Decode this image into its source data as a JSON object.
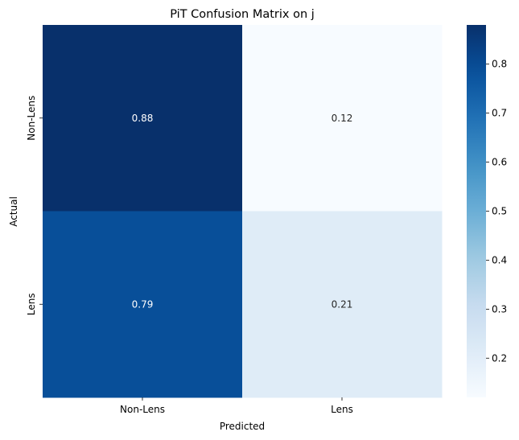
{
  "chart_data": {
    "type": "heatmap",
    "title": "PiT Confusion Matrix on j",
    "xlabel": "Predicted",
    "ylabel": "Actual",
    "x_categories": [
      "Non-Lens",
      "Lens"
    ],
    "y_categories": [
      "Non-Lens",
      "Lens"
    ],
    "values": [
      [
        0.88,
        0.12
      ],
      [
        0.79,
        0.21
      ]
    ],
    "cell_labels": [
      [
        "0.88",
        "0.12"
      ],
      [
        "0.79",
        "0.21"
      ]
    ],
    "colormap": "Blues",
    "colorbar": {
      "min": 0.12,
      "max": 0.88,
      "ticks": [
        0.2,
        0.3,
        0.4,
        0.5,
        0.6,
        0.7,
        0.8
      ],
      "tick_labels": [
        "0.2",
        "0.3",
        "0.4",
        "0.5",
        "0.6",
        "0.7",
        "0.8"
      ]
    },
    "grid": false,
    "legend": "colorbar-right"
  }
}
